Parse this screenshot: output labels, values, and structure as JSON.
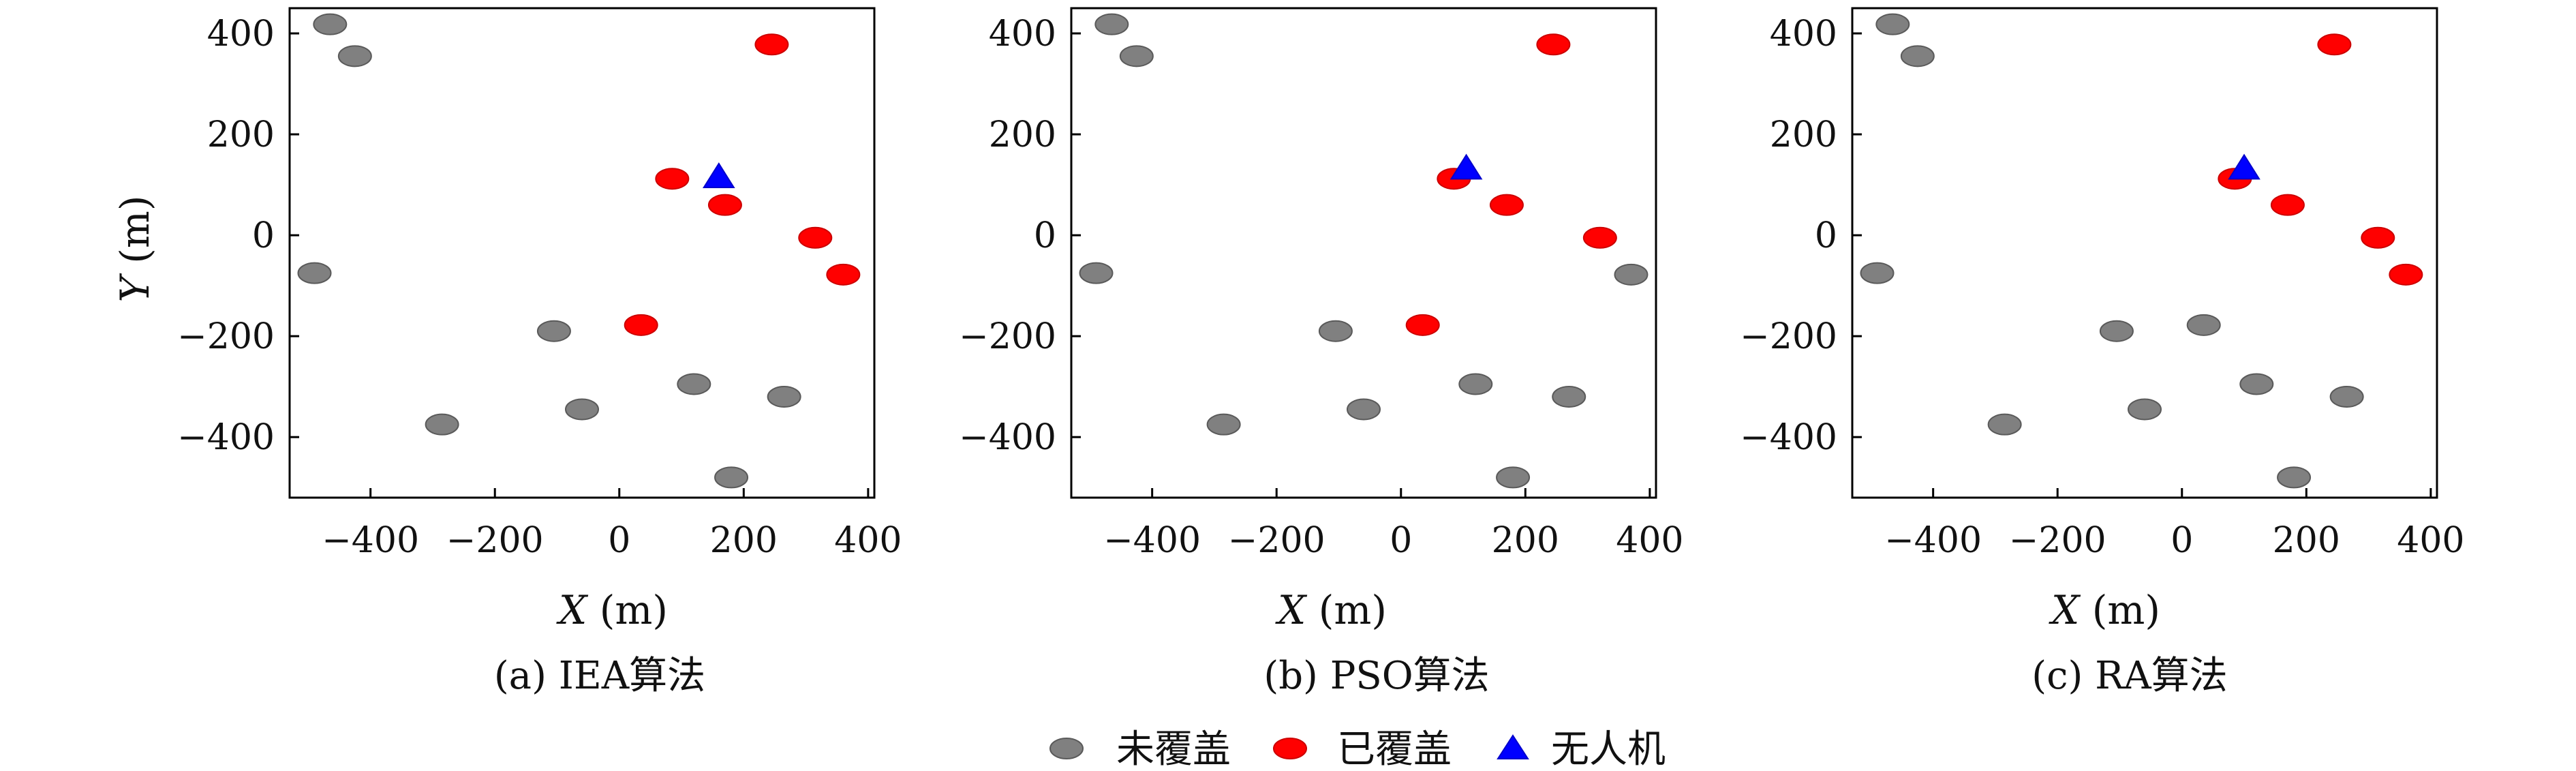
{
  "legend": {
    "items": [
      {
        "label": "未覆盖",
        "marker": "ellipse",
        "color": "#808080",
        "edge": "#5a5a5a"
      },
      {
        "label": "已覆盖",
        "marker": "ellipse",
        "color": "#ff0000",
        "edge": "#cc0000"
      },
      {
        "label": "无人机",
        "marker": "triangle",
        "color": "#0000ff",
        "edge": "#0000cc"
      }
    ]
  },
  "chart_data": [
    {
      "type": "scatter",
      "caption": "(a) IEA算法",
      "xlabel_var": "X",
      "xlabel_unit": " (m)",
      "ylabel_var": "Y",
      "ylabel_unit": " (m)",
      "xlim": [
        -530,
        410
      ],
      "ylim": [
        -520,
        450
      ],
      "xticks": [
        -400,
        -200,
        0,
        200,
        400
      ],
      "yticks": [
        -400,
        -200,
        0,
        200,
        400
      ],
      "series": [
        {
          "name": "未覆盖",
          "points": [
            [
              -465,
              418
            ],
            [
              -425,
              355
            ],
            [
              -490,
              -75
            ],
            [
              -105,
              -190
            ],
            [
              -60,
              -345
            ],
            [
              -285,
              -375
            ],
            [
              120,
              -295
            ],
            [
              265,
              -320
            ],
            [
              180,
              -480
            ]
          ]
        },
        {
          "name": "已覆盖",
          "points": [
            [
              245,
              378
            ],
            [
              85,
              112
            ],
            [
              170,
              60
            ],
            [
              315,
              -5
            ],
            [
              360,
              -78
            ],
            [
              35,
              -178
            ]
          ]
        },
        {
          "name": "无人机",
          "points": [
            [
              160,
              115
            ]
          ]
        }
      ]
    },
    {
      "type": "scatter",
      "caption": "(b) PSO算法",
      "xlabel_var": "X",
      "xlabel_unit": " (m)",
      "ylabel_var": "",
      "ylabel_unit": "",
      "xlim": [
        -530,
        410
      ],
      "ylim": [
        -520,
        450
      ],
      "xticks": [
        -400,
        -200,
        0,
        200,
        400
      ],
      "yticks": [
        -400,
        -200,
        0,
        200,
        400
      ],
      "series": [
        {
          "name": "未覆盖",
          "points": [
            [
              -465,
              418
            ],
            [
              -425,
              355
            ],
            [
              -490,
              -75
            ],
            [
              -105,
              -190
            ],
            [
              -60,
              -345
            ],
            [
              -285,
              -375
            ],
            [
              120,
              -295
            ],
            [
              270,
              -320
            ],
            [
              180,
              -480
            ],
            [
              370,
              -78
            ]
          ]
        },
        {
          "name": "已覆盖",
          "points": [
            [
              245,
              378
            ],
            [
              85,
              112
            ],
            [
              170,
              60
            ],
            [
              320,
              -5
            ],
            [
              35,
              -178
            ]
          ]
        },
        {
          "name": "无人机",
          "points": [
            [
              105,
              132
            ]
          ]
        }
      ]
    },
    {
      "type": "scatter",
      "caption": "(c) RA算法",
      "xlabel_var": "X",
      "xlabel_unit": " (m)",
      "ylabel_var": "",
      "ylabel_unit": "",
      "xlim": [
        -530,
        410
      ],
      "ylim": [
        -520,
        450
      ],
      "xticks": [
        -400,
        -200,
        0,
        200,
        400
      ],
      "yticks": [
        -400,
        -200,
        0,
        200,
        400
      ],
      "series": [
        {
          "name": "未覆盖",
          "points": [
            [
              -465,
              418
            ],
            [
              -425,
              355
            ],
            [
              -490,
              -75
            ],
            [
              -105,
              -190
            ],
            [
              -60,
              -345
            ],
            [
              -285,
              -375
            ],
            [
              120,
              -295
            ],
            [
              265,
              -320
            ],
            [
              180,
              -480
            ],
            [
              35,
              -178
            ]
          ]
        },
        {
          "name": "已覆盖",
          "points": [
            [
              245,
              378
            ],
            [
              85,
              112
            ],
            [
              170,
              60
            ],
            [
              315,
              -5
            ],
            [
              360,
              -78
            ]
          ]
        },
        {
          "name": "无人机",
          "points": [
            [
              100,
              132
            ]
          ]
        }
      ]
    }
  ]
}
